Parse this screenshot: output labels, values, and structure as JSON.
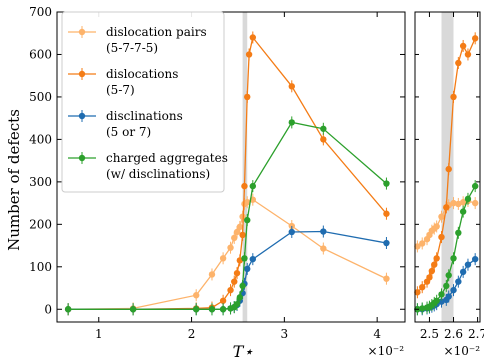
{
  "chart_data": [
    {
      "type": "line",
      "xlabel": "T⋆",
      "ylabel": "Number of defects",
      "x_offset_label": "×10⁻²",
      "xlim": [
        0.55,
        4.3
      ],
      "ylim": [
        -30,
        700
      ],
      "xticks": [
        1,
        2,
        3,
        4
      ],
      "yticks": [
        0,
        100,
        200,
        300,
        400,
        500,
        600,
        700
      ],
      "shaded_band": [
        2.55,
        2.6
      ],
      "legend_position": "upper left",
      "series": [
        {
          "name": "dislocation pairs\n(5-7-7-5)",
          "color": "#fdb36b",
          "x": [
            0.67,
            1.37,
            2.05,
            2.22,
            2.34,
            2.42,
            2.46,
            2.49,
            2.52,
            2.55,
            2.57,
            2.6,
            2.66,
            3.08,
            3.42,
            4.1
          ],
          "y": [
            0,
            2,
            33,
            82,
            120,
            145,
            168,
            182,
            194,
            218,
            248,
            252,
            258,
            196,
            143,
            72
          ]
        },
        {
          "name": "dislocations\n(5-7)",
          "color": "#f47c16",
          "x": [
            0.67,
            1.37,
            2.05,
            2.22,
            2.34,
            2.42,
            2.46,
            2.49,
            2.52,
            2.55,
            2.57,
            2.6,
            2.62,
            2.66,
            3.08,
            3.42,
            4.1
          ],
          "y": [
            0,
            0,
            2,
            4,
            20,
            45,
            65,
            85,
            115,
            175,
            290,
            500,
            600,
            640,
            525,
            400,
            225
          ]
        },
        {
          "name": "disclinations\n(5 or 7)",
          "color": "#1f6cb0",
          "x": [
            0.67,
            1.37,
            2.05,
            2.22,
            2.34,
            2.42,
            2.46,
            2.49,
            2.52,
            2.55,
            2.57,
            2.6,
            2.66,
            3.08,
            3.42,
            4.1
          ],
          "y": [
            0,
            0,
            0,
            0,
            0,
            2,
            5,
            10,
            20,
            38,
            60,
            95,
            118,
            182,
            183,
            156
          ]
        },
        {
          "name": "charged aggregates\n(w/ disclinations)",
          "color": "#2ca02c",
          "x": [
            0.67,
            1.37,
            2.05,
            2.22,
            2.34,
            2.42,
            2.46,
            2.49,
            2.52,
            2.55,
            2.57,
            2.6,
            2.66,
            3.08,
            3.42,
            4.1
          ],
          "y": [
            0,
            0,
            0,
            0,
            0,
            2,
            5,
            12,
            28,
            55,
            120,
            210,
            290,
            440,
            425,
            296
          ]
        }
      ]
    },
    {
      "type": "line",
      "x_offset_label": "×10⁻²",
      "xlim": [
        2.44,
        2.71
      ],
      "ylim": [
        -30,
        700
      ],
      "xticks": [
        2.5,
        2.6,
        2.7
      ],
      "xticklabels": [
        "2.5",
        "2.6",
        "2.7"
      ],
      "shaded_band": [
        2.55,
        2.6
      ],
      "series": [
        {
          "color": "#fdb36b",
          "x": [
            2.45,
            2.47,
            2.49,
            2.5,
            2.51,
            2.52,
            2.53,
            2.55,
            2.57,
            2.58,
            2.6,
            2.62,
            2.64,
            2.66,
            2.69
          ],
          "y": [
            148,
            155,
            165,
            175,
            185,
            190,
            195,
            218,
            240,
            245,
            250,
            248,
            252,
            255,
            250
          ]
        },
        {
          "color": "#f47c16",
          "x": [
            2.45,
            2.47,
            2.49,
            2.5,
            2.51,
            2.52,
            2.53,
            2.55,
            2.57,
            2.58,
            2.6,
            2.62,
            2.64,
            2.66,
            2.69
          ],
          "y": [
            40,
            52,
            65,
            75,
            90,
            105,
            120,
            170,
            240,
            330,
            500,
            580,
            620,
            600,
            638
          ]
        },
        {
          "color": "#1f6cb0",
          "x": [
            2.45,
            2.47,
            2.49,
            2.5,
            2.51,
            2.52,
            2.53,
            2.55,
            2.57,
            2.58,
            2.6,
            2.62,
            2.64,
            2.66,
            2.69
          ],
          "y": [
            0,
            0,
            2,
            4,
            6,
            9,
            12,
            18,
            22,
            30,
            45,
            65,
            88,
            105,
            118
          ]
        },
        {
          "color": "#2ca02c",
          "x": [
            2.45,
            2.47,
            2.49,
            2.5,
            2.51,
            2.52,
            2.53,
            2.55,
            2.57,
            2.58,
            2.6,
            2.62,
            2.64,
            2.66,
            2.69
          ],
          "y": [
            0,
            2,
            4,
            6,
            10,
            15,
            20,
            35,
            55,
            80,
            120,
            180,
            230,
            260,
            290
          ]
        }
      ]
    }
  ]
}
